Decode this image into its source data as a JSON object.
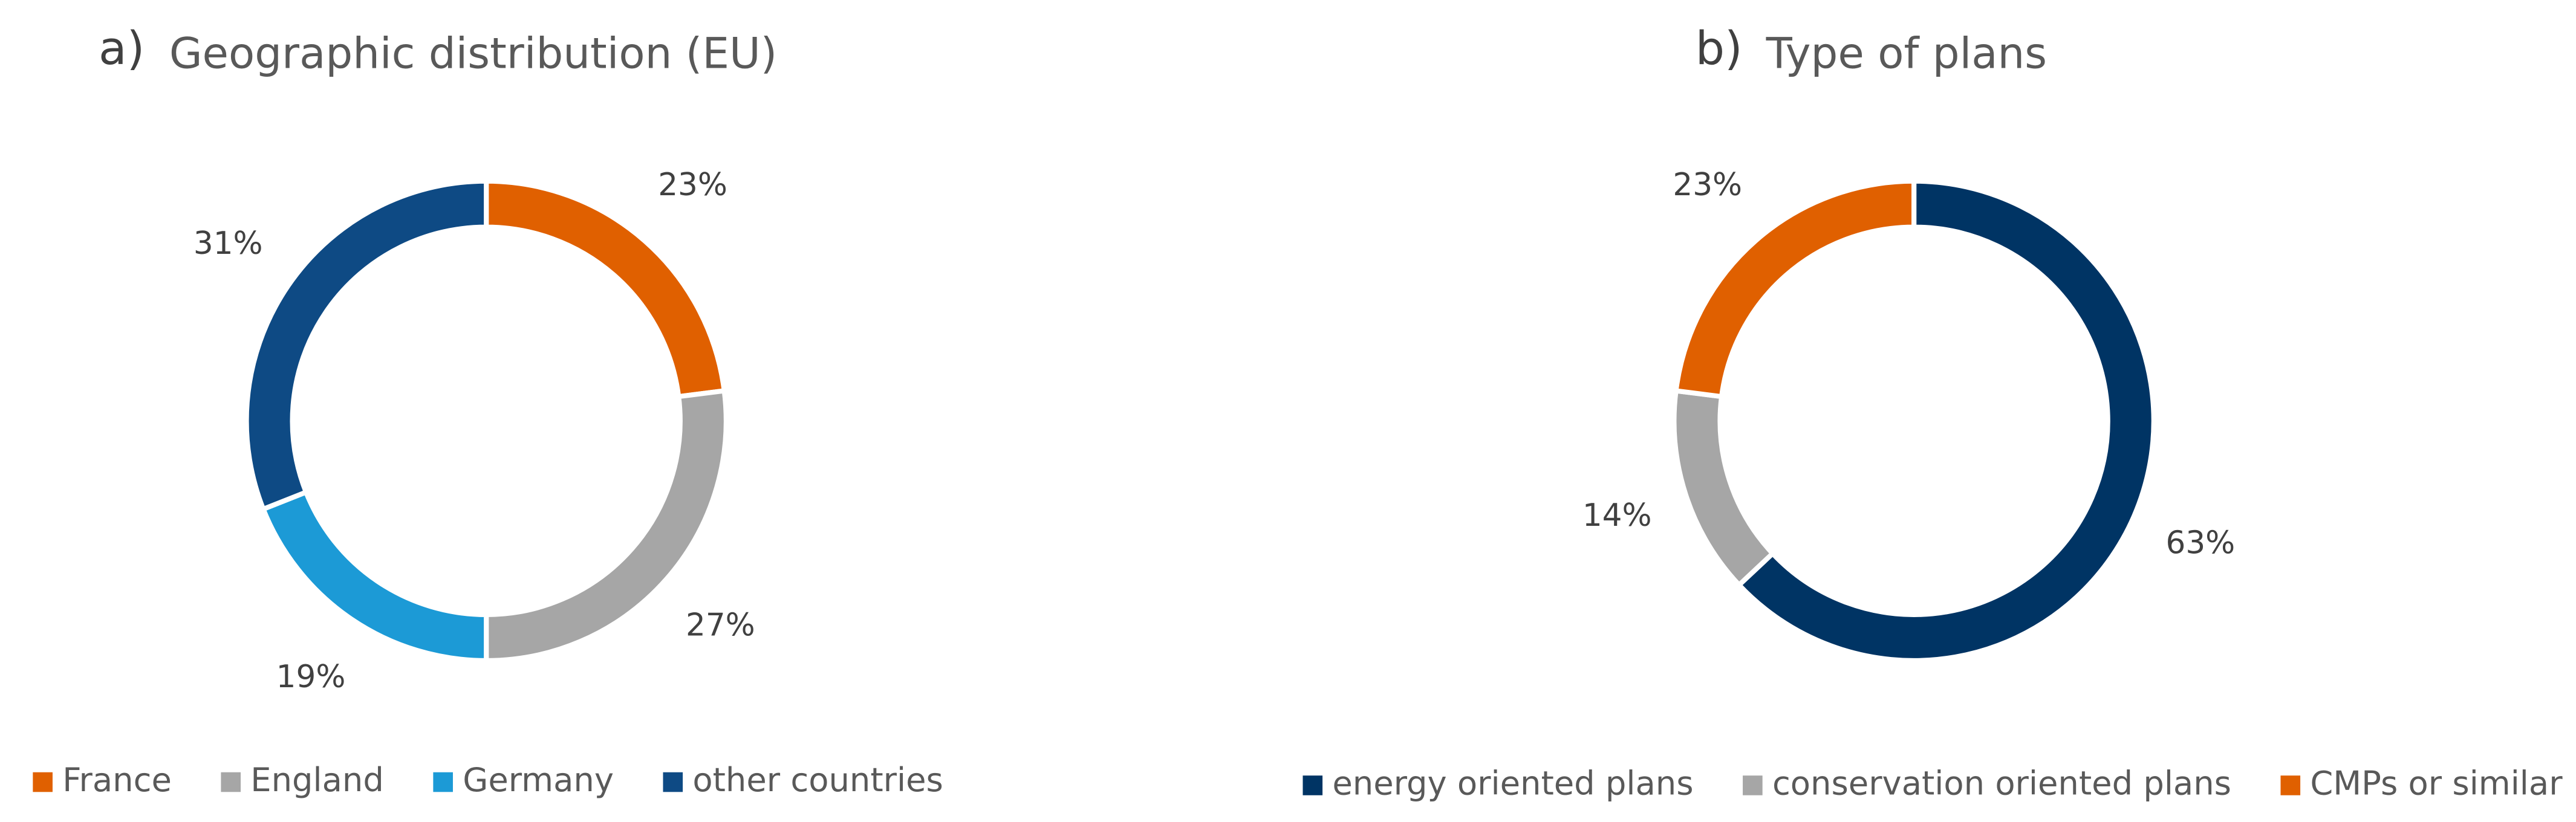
{
  "chart_data": [
    {
      "type": "donut",
      "panel_label": "a)",
      "title": "Geographic distribution (EU)",
      "categories": [
        "France",
        "England",
        "Germany",
        "other countries"
      ],
      "values": [
        23,
        27,
        19,
        31
      ],
      "value_labels": [
        "23%",
        "27%",
        "19%",
        "31%"
      ],
      "colors": [
        "#E06000",
        "#A6A6A6",
        "#1C9AD6",
        "#0E4A84"
      ],
      "legend": "bottom"
    },
    {
      "type": "donut",
      "panel_label": "b)",
      "title": "Type of plans",
      "categories": [
        "energy oriented plans",
        "conservation oriented plans",
        "CMPs or similar"
      ],
      "values": [
        63,
        14,
        23
      ],
      "value_labels": [
        "63%",
        "14%",
        "23%"
      ],
      "colors": [
        "#003464",
        "#A6A6A6",
        "#E06000"
      ],
      "legend": "bottom"
    }
  ]
}
